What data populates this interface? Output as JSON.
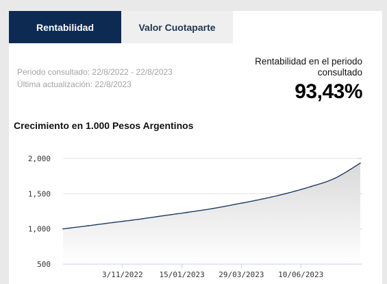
{
  "tabs": [
    {
      "label": "Rentabilidad",
      "active": true
    },
    {
      "label": "Valor Cuotaparte",
      "active": false
    }
  ],
  "period": {
    "consulted": "Periodo consultado: 22/8/2022 - 22/8/2023",
    "updated": "Última actualización: 22/8/2023"
  },
  "return": {
    "label_line1": "Rentabilidad en el periodo",
    "label_line2": "consultado",
    "value": "93,43%"
  },
  "colors": {
    "tab_active_bg": "#0d2a52",
    "line": "#1d3a63",
    "area_top": "#d9d9d9",
    "area_bottom": "#ffffff"
  },
  "chart_data": {
    "type": "area",
    "title": "Crecimiento en 1.000 Pesos Argentinos",
    "ylim": [
      500,
      2000
    ],
    "yticks": [
      {
        "value": 500,
        "label": "500"
      },
      {
        "value": 1000,
        "label": "1,000"
      },
      {
        "value": 1500,
        "label": "1,500"
      },
      {
        "value": 2000,
        "label": "2,000"
      }
    ],
    "xdomain": [
      "2022-08-22",
      "2023-08-22"
    ],
    "xticks": [
      {
        "date": "2022-11-03",
        "label": "3/11/2022"
      },
      {
        "date": "2023-01-15",
        "label": "15/01/2023"
      },
      {
        "date": "2023-03-29",
        "label": "29/03/2023"
      },
      {
        "date": "2023-06-10",
        "label": "10/06/2023"
      }
    ],
    "x": [
      "2022-08-22",
      "2022-09-22",
      "2022-10-22",
      "2022-11-22",
      "2022-12-22",
      "2023-01-22",
      "2023-02-22",
      "2023-03-22",
      "2023-04-22",
      "2023-05-22",
      "2023-06-22",
      "2023-07-22",
      "2023-08-22"
    ],
    "series": [
      {
        "values": [
          1000,
          1045,
          1090,
          1135,
          1185,
          1235,
          1290,
          1350,
          1420,
          1500,
          1600,
          1720,
          1934
        ]
      }
    ]
  }
}
